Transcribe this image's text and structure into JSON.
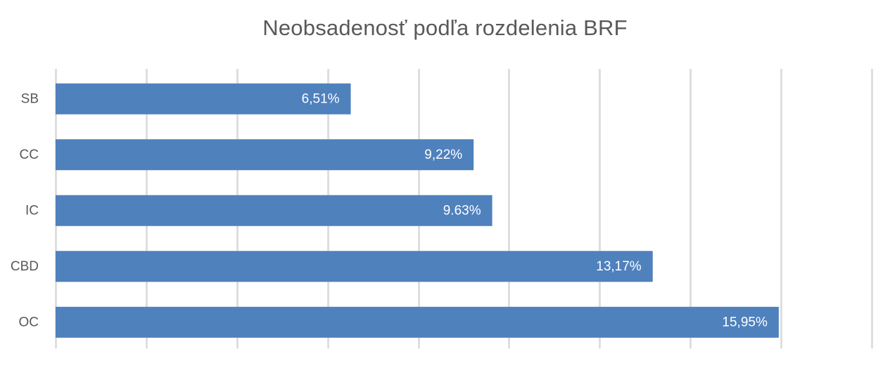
{
  "chart_data": {
    "type": "bar",
    "orientation": "horizontal",
    "title": "Neobsadenosť podľa rozdelenia BRF",
    "categories": [
      "SB",
      "CC",
      "IC",
      "CBD",
      "OC"
    ],
    "values": [
      6.51,
      9.22,
      9.63,
      13.17,
      15.95
    ],
    "data_labels": [
      "6,51%",
      "9,22%",
      "9.63%",
      "13,17%",
      "15,95%"
    ],
    "xlim": [
      0,
      18
    ],
    "x_gridline_step": 2,
    "x_tick_labels_shown": false,
    "grid": true,
    "legend": "none",
    "bar_color": "#4f81bd",
    "grid_color": "#d9d9d9"
  }
}
